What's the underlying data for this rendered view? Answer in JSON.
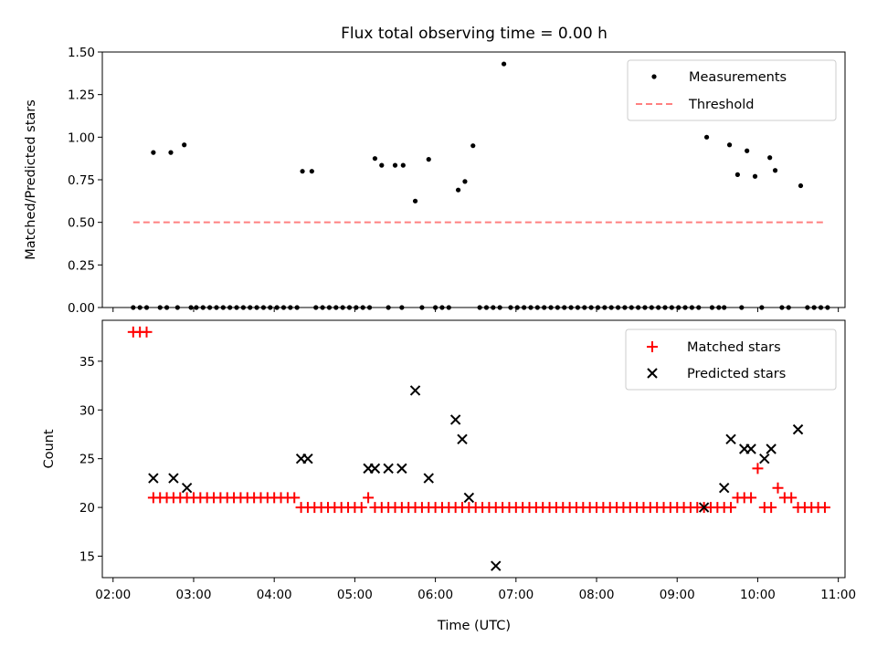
{
  "chart_data": [
    {
      "type": "scatter",
      "title": "Flux total observing time = 0.00 h",
      "xlabel": "",
      "ylabel": "Matched/Predicted stars",
      "ylim": [
        0,
        1.5
      ],
      "yticks": [
        "0.00",
        "0.25",
        "0.50",
        "0.75",
        "1.00",
        "1.25",
        "1.50"
      ],
      "xlim": [
        "02:00",
        "11:00"
      ],
      "xtick_labels": [],
      "legend_position": "top-right",
      "series": [
        {
          "name": "Measurements",
          "color": "#000000",
          "marker": "dot",
          "x": [
            "02:30",
            "02:43",
            "02:53",
            "04:21",
            "04:28",
            "05:15",
            "05:20",
            "05:30",
            "05:36",
            "05:45",
            "05:55",
            "06:17",
            "06:22",
            "06:28",
            "06:51",
            "09:22",
            "09:39",
            "09:45",
            "09:52",
            "09:58",
            "10:09",
            "10:13",
            "10:32"
          ],
          "y": [
            0.91,
            0.91,
            0.955,
            0.8,
            0.8,
            0.875,
            0.835,
            0.835,
            0.835,
            0.625,
            0.87,
            0.69,
            0.74,
            0.95,
            1.43,
            1.0,
            0.955,
            0.78,
            0.92,
            0.77,
            0.88,
            0.805,
            0.715
          ]
        },
        {
          "name": "Threshold",
          "color": "#ff8080",
          "style": "dashed",
          "x": [
            "02:15",
            "10:50"
          ],
          "y": [
            0.5,
            0.5
          ]
        }
      ],
      "zero_measurements_x": [
        "02:15",
        "02:20",
        "02:25",
        "02:35",
        "02:40",
        "02:48",
        "02:58",
        "03:02",
        "03:07",
        "03:12",
        "03:17",
        "03:22",
        "03:27",
        "03:32",
        "03:37",
        "03:42",
        "03:47",
        "03:52",
        "03:57",
        "04:02",
        "04:07",
        "04:12",
        "04:17",
        "04:31",
        "04:36",
        "04:41",
        "04:46",
        "04:51",
        "04:56",
        "05:01",
        "05:06",
        "05:11",
        "05:25",
        "05:35",
        "05:50",
        "06:00",
        "06:05",
        "06:10",
        "06:33",
        "06:38",
        "06:43",
        "06:48",
        "06:56",
        "07:01",
        "07:06",
        "07:11",
        "07:16",
        "07:21",
        "07:26",
        "07:31",
        "07:36",
        "07:41",
        "07:46",
        "07:51",
        "07:56",
        "08:01",
        "08:06",
        "08:11",
        "08:16",
        "08:21",
        "08:26",
        "08:31",
        "08:36",
        "08:41",
        "08:46",
        "08:51",
        "08:56",
        "09:01",
        "09:06",
        "09:11",
        "09:16",
        "09:26",
        "09:31",
        "09:35",
        "09:48",
        "10:03",
        "10:18",
        "10:23",
        "10:37",
        "10:42",
        "10:47",
        "10:52"
      ]
    },
    {
      "type": "scatter",
      "title": "",
      "xlabel": "Time (UTC)",
      "ylabel": "Count",
      "ylim": [
        12.8,
        39.2
      ],
      "yticks": [
        "15",
        "20",
        "25",
        "30",
        "35"
      ],
      "xlim": [
        "01:52",
        "11:05"
      ],
      "xtick_labels": [
        "02:00",
        "03:00",
        "04:00",
        "05:00",
        "06:00",
        "07:00",
        "08:00",
        "09:00",
        "10:00",
        "11:00"
      ],
      "legend_position": "top-right",
      "series": [
        {
          "name": "Matched stars",
          "color": "#ff0000",
          "marker": "plus",
          "x": [
            "02:15",
            "02:20",
            "02:25",
            "02:30",
            "02:35",
            "02:40",
            "02:45",
            "02:50",
            "02:55",
            "03:00",
            "03:05",
            "03:10",
            "03:15",
            "03:20",
            "03:25",
            "03:30",
            "03:35",
            "03:40",
            "03:45",
            "03:50",
            "03:55",
            "04:00",
            "04:05",
            "04:10",
            "04:15",
            "04:20",
            "04:25",
            "04:30",
            "04:35",
            "04:40",
            "04:45",
            "04:50",
            "04:55",
            "05:00",
            "05:05",
            "05:10",
            "05:15",
            "05:20",
            "05:25",
            "05:30",
            "05:35",
            "05:40",
            "05:45",
            "05:50",
            "05:55",
            "06:00",
            "06:05",
            "06:10",
            "06:15",
            "06:20",
            "06:25",
            "06:30",
            "06:35",
            "06:40",
            "06:45",
            "06:50",
            "06:55",
            "07:00",
            "07:05",
            "07:10",
            "07:15",
            "07:20",
            "07:25",
            "07:30",
            "07:35",
            "07:40",
            "07:45",
            "07:50",
            "07:55",
            "08:00",
            "08:05",
            "08:10",
            "08:15",
            "08:20",
            "08:25",
            "08:30",
            "08:35",
            "08:40",
            "08:45",
            "08:50",
            "08:55",
            "09:00",
            "09:05",
            "09:10",
            "09:15",
            "09:20",
            "09:25",
            "09:30",
            "09:35",
            "09:40",
            "09:45",
            "09:50",
            "09:55",
            "10:00",
            "10:05",
            "10:10",
            "10:15",
            "10:20",
            "10:25",
            "10:30",
            "10:35",
            "10:40",
            "10:45",
            "10:50"
          ],
          "y": [
            38,
            38,
            38,
            21,
            21,
            21,
            21,
            21,
            21,
            21,
            21,
            21,
            21,
            21,
            21,
            21,
            21,
            21,
            21,
            21,
            21,
            21,
            21,
            21,
            21,
            20,
            20,
            20,
            20,
            20,
            20,
            20,
            20,
            20,
            20,
            21,
            20,
            20,
            20,
            20,
            20,
            20,
            20,
            20,
            20,
            20,
            20,
            20,
            20,
            20,
            20,
            20,
            20,
            20,
            20,
            20,
            20,
            20,
            20,
            20,
            20,
            20,
            20,
            20,
            20,
            20,
            20,
            20,
            20,
            20,
            20,
            20,
            20,
            20,
            20,
            20,
            20,
            20,
            20,
            20,
            20,
            20,
            20,
            20,
            20,
            20,
            20,
            20,
            20,
            20,
            21,
            21,
            21,
            24,
            20,
            20,
            22,
            21,
            21,
            20,
            20,
            20,
            20,
            20
          ]
        },
        {
          "name": "Predicted stars",
          "color": "#000000",
          "marker": "x",
          "x": [
            "02:30",
            "02:45",
            "02:55",
            "04:20",
            "04:25",
            "05:10",
            "05:15",
            "05:25",
            "05:35",
            "05:45",
            "05:55",
            "06:15",
            "06:20",
            "06:25",
            "06:45",
            "09:20",
            "09:35",
            "09:40",
            "09:50",
            "09:55",
            "10:05",
            "10:10",
            "10:30"
          ],
          "y": [
            23,
            23,
            22,
            25,
            25,
            24,
            24,
            24,
            24,
            32,
            23,
            29,
            27,
            21,
            14,
            20,
            22,
            27,
            26,
            26,
            25,
            26,
            28
          ]
        }
      ]
    }
  ]
}
